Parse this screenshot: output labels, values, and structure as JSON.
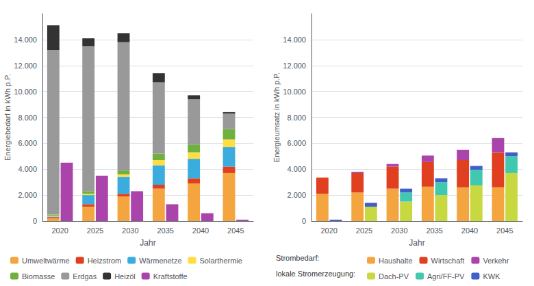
{
  "chart_data": [
    {
      "type": "bar",
      "xlabel": "Jahr",
      "ylabel": "Energiebedarf in kWh p.P.",
      "categories": [
        "2020",
        "2025",
        "2030",
        "2035",
        "2040",
        "2045"
      ],
      "stacked": true,
      "grid": true,
      "legend": "bottom",
      "ylim": [
        0,
        16000
      ],
      "yticks": [
        0,
        {
          "value": 2000,
          "label": "2.000"
        },
        {
          "value": 4000,
          "label": "4.000"
        },
        {
          "value": 6000,
          "label": "6.000"
        },
        {
          "value": 8000,
          "label": "8.000"
        },
        {
          "value": 10000,
          "label": "10.000"
        },
        {
          "value": 12000,
          "label": "12.000"
        },
        {
          "value": 14000,
          "label": "14.000"
        }
      ],
      "stacks": [
        {
          "series": [
            {
              "name": "Umweltwärme",
              "color": "#F4A540",
              "values": [
                200,
                1100,
                1900,
                2500,
                2900,
                3700
              ]
            },
            {
              "name": "Heizstrom",
              "color": "#E04020",
              "values": [
                100,
                200,
                200,
                300,
                400,
                500
              ]
            },
            {
              "name": "Wärmenetze",
              "color": "#3AACDE",
              "values": [
                50,
                700,
                1300,
                1500,
                1500,
                1500
              ]
            },
            {
              "name": "Solarthermie",
              "color": "#FFDD44",
              "values": [
                50,
                100,
                200,
                400,
                500,
                600
              ]
            },
            {
              "name": "Biomasse",
              "color": "#70B040",
              "values": [
                100,
                200,
                300,
                500,
                600,
                800
              ]
            },
            {
              "name": "Erdgas",
              "color": "#999999",
              "values": [
                12700,
                11200,
                9900,
                5500,
                3500,
                1200
              ]
            },
            {
              "name": "Heizöl",
              "color": "#333333",
              "values": [
                1900,
                600,
                700,
                700,
                300,
                100
              ]
            }
          ]
        },
        {
          "series": [
            {
              "name": "Kraftstoffe",
              "color": "#AA44AA",
              "values": [
                4500,
                3500,
                2300,
                1300,
                600,
                100
              ]
            }
          ]
        }
      ]
    },
    {
      "type": "bar",
      "xlabel": "Jahr",
      "ylabel": "Energieumsatz in kWh p.P.",
      "categories": [
        "2020",
        "2025",
        "2030",
        "2035",
        "2040",
        "2045"
      ],
      "stacked": true,
      "grid": true,
      "legend": "bottom",
      "ylim": [
        0,
        16000
      ],
      "yticks": [
        0,
        {
          "value": 2000,
          "label": "2.000"
        },
        {
          "value": 4000,
          "label": "4.000"
        },
        {
          "value": 6000,
          "label": "6.000"
        },
        {
          "value": 8000,
          "label": "8.000"
        },
        {
          "value": 10000,
          "label": "10.000"
        },
        {
          "value": 12000,
          "label": "12.000"
        },
        {
          "value": 14000,
          "label": "14.000"
        }
      ],
      "stacks": [
        {
          "label": "Strombedarf:",
          "series": [
            {
              "name": "Haushalte",
              "color": "#F4A540",
              "values": [
                2100,
                2200,
                2500,
                2650,
                2600,
                2600
              ]
            },
            {
              "name": "Wirtschaft",
              "color": "#E04020",
              "values": [
                1250,
                1500,
                1700,
                1900,
                2100,
                2700
              ]
            },
            {
              "name": "Verkehr",
              "color": "#AA44AA",
              "values": [
                0,
                100,
                200,
                500,
                800,
                1100
              ]
            }
          ]
        },
        {
          "label": "lokale Stromerzeugung:",
          "series": [
            {
              "name": "Dach-PV",
              "color": "#C8D840",
              "values": [
                0,
                1100,
                1500,
                2000,
                2750,
                3700
              ]
            },
            {
              "name": "Agri/FF-PV",
              "color": "#40C8B0",
              "values": [
                0,
                0,
                700,
                1000,
                1200,
                1300
              ]
            },
            {
              "name": "KWK",
              "color": "#4060C8",
              "values": [
                100,
                300,
                300,
                300,
                300,
                300
              ]
            }
          ]
        }
      ]
    }
  ]
}
